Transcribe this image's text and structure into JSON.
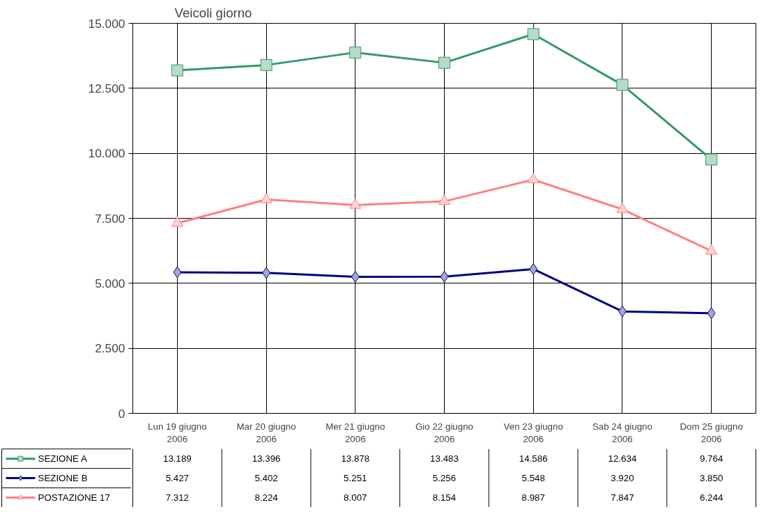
{
  "chart_data": {
    "type": "line",
    "title": "Veicoli giorno",
    "categories": [
      "Lun 19 giugno\n2006",
      "Mar 20 giugno\n2006",
      "Mer 21 giugno\n2006",
      "Gio 22 giugno\n2006",
      "Ven 23 giugno\n2006",
      "Sab 24 giugno\n2006",
      "Dom 25 giugno\n2006"
    ],
    "series": [
      {
        "name": "SEZIONE A",
        "color": "#339966",
        "marker": "square",
        "values": [
          13189,
          13396,
          13878,
          13483,
          14586,
          12634,
          9764
        ],
        "value_labels": [
          "13.189",
          "13.396",
          "13.878",
          "13.483",
          "14.586",
          "12.634",
          "9.764"
        ]
      },
      {
        "name": "SEZIONE B",
        "color": "#000080",
        "marker": "diamond",
        "values": [
          5427,
          5402,
          5251,
          5256,
          5548,
          3920,
          3850
        ],
        "value_labels": [
          "5.427",
          "5.402",
          "5.251",
          "5.256",
          "5.548",
          "3.920",
          "3.850"
        ]
      },
      {
        "name": "POSTAZIONE 17",
        "color": "#ff8080",
        "marker": "triangle",
        "values": [
          7312,
          8224,
          8007,
          8154,
          8987,
          7847,
          6244
        ],
        "value_labels": [
          "7.312",
          "8.224",
          "8.007",
          "8.154",
          "8.987",
          "7.847",
          "6.244"
        ]
      }
    ],
    "ylim": [
      0,
      15000
    ],
    "yticks": [
      {
        "value": 0,
        "label": "0"
      },
      {
        "value": 2500,
        "label": "2.500"
      },
      {
        "value": 5000,
        "label": "5.000"
      },
      {
        "value": 7500,
        "label": "7.500"
      },
      {
        "value": 10000,
        "label": "10.000"
      },
      {
        "value": 12500,
        "label": "12.500"
      },
      {
        "value": 15000,
        "label": "15.000"
      }
    ],
    "grid": true,
    "legend": "bottom left",
    "line_style": "solid"
  }
}
